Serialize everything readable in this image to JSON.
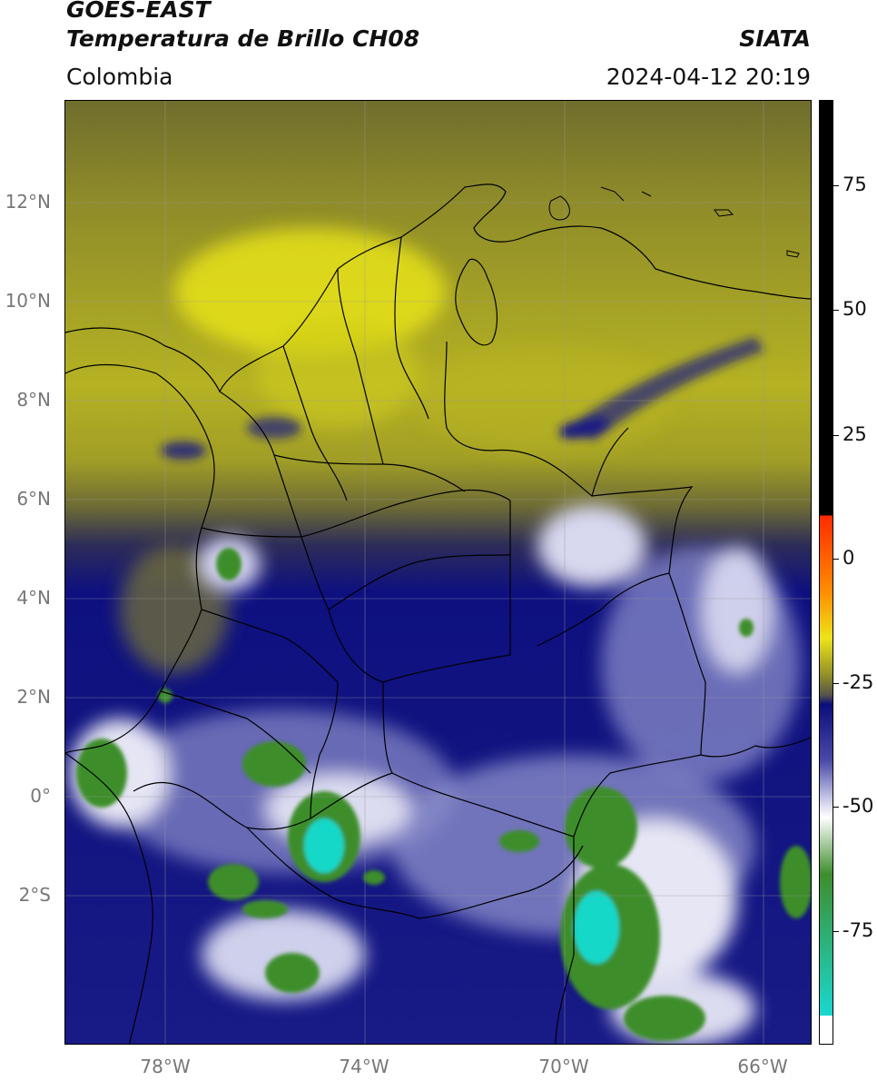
{
  "header": {
    "satellite": "GOES-EAST",
    "product": "Temperatura de Brillo CH08",
    "organization": "SIATA",
    "region": "Colombia",
    "timestamp": "2024-04-12 20:19"
  },
  "map": {
    "lat_labels": [
      "12°N",
      "10°N",
      "8°N",
      "6°N",
      "4°N",
      "2°N",
      "0°",
      "2°S"
    ],
    "lon_labels": [
      "78°W",
      "74°W",
      "70°W",
      "66°W"
    ]
  },
  "colorbar": {
    "labels": [
      "75",
      "50",
      "25",
      "0",
      "-25",
      "-50",
      "-75"
    ],
    "colors": {
      "black": "#000000",
      "red": "#ff2a00",
      "orange": "#ff8c00",
      "yellow": "#ece41a",
      "olive": "#8f8c2a",
      "grey": "#55554a",
      "navy": "#0c0e7a",
      "blue": "#4a4aa8",
      "lavender": "#c8c8e6",
      "white": "#ffffff",
      "green": "#3e8e2c",
      "cyan": "#19d8d0"
    }
  }
}
